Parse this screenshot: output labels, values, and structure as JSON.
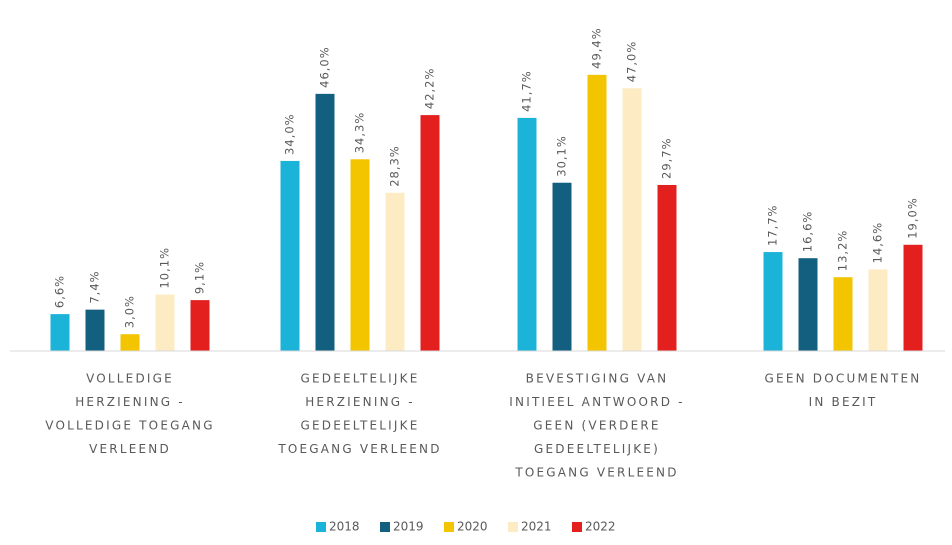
{
  "chart_data": {
    "type": "bar",
    "categories": [
      [
        "VOLLEDIGE",
        "HERZIENING -",
        "VOLLEDIGE TOEGANG",
        "VERLEEND"
      ],
      [
        "GEDEELTELIJKE",
        "HERZIENING -",
        "GEDEELTELIJKE",
        "TOEGANG VERLEEND"
      ],
      [
        "BEVESTIGING VAN",
        "INITIEEL ANTWOORD -",
        "GEEN (VERDERE",
        "GEDEELTELIJKE)",
        "TOEGANG VERLEEND"
      ],
      [
        "GEEN DOCUMENTEN",
        "IN BEZIT"
      ]
    ],
    "series": [
      {
        "name": "2018",
        "color": "#1cb3d8",
        "values": [
          6.6,
          34.0,
          41.7,
          17.7
        ],
        "value_labels": [
          "6,6%",
          "34,0%",
          "41,7%",
          "17,7%"
        ]
      },
      {
        "name": "2019",
        "color": "#135f80",
        "values": [
          7.4,
          46.0,
          30.1,
          16.6
        ],
        "value_labels": [
          "7,4%",
          "46,0%",
          "30,1%",
          "16,6%"
        ]
      },
      {
        "name": "2020",
        "color": "#f2c500",
        "values": [
          3.0,
          34.3,
          49.4,
          13.2
        ],
        "value_labels": [
          "3,0%",
          "34,3%",
          "49,4%",
          "13,2%"
        ]
      },
      {
        "name": "2021",
        "color": "#fdebc4",
        "values": [
          10.1,
          28.3,
          47.0,
          14.6
        ],
        "value_labels": [
          "10,1%",
          "28,3%",
          "47,0%",
          "14,6%"
        ]
      },
      {
        "name": "2022",
        "color": "#e3201e",
        "values": [
          9.1,
          42.2,
          29.7,
          19.0
        ],
        "value_labels": [
          "9,1%",
          "42,2%",
          "29,7%",
          "19,0%"
        ]
      }
    ],
    "ylim": [
      0,
      50
    ],
    "legend": "bottom"
  }
}
